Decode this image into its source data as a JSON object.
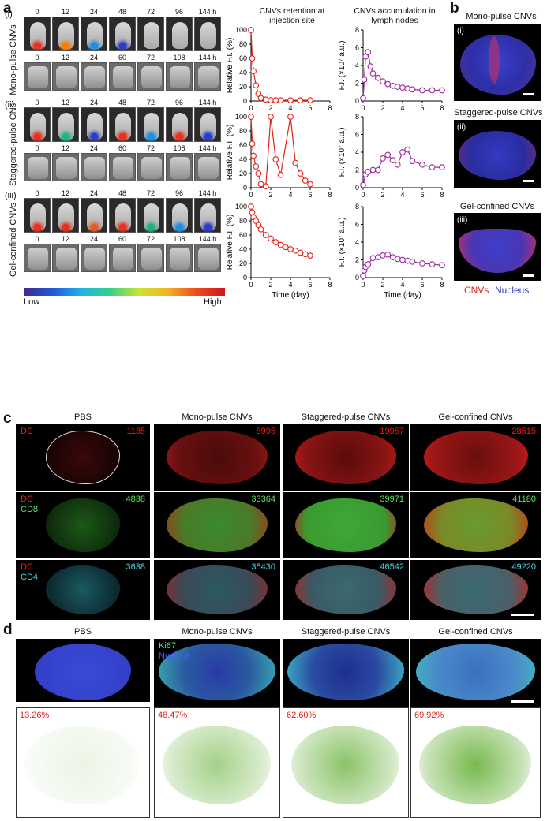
{
  "panel_letters": {
    "a": "a",
    "b": "b",
    "c": "c",
    "d": "d"
  },
  "panel_a": {
    "rows": [
      {
        "roman": "(i)",
        "label": "Mono-pulse CNVs"
      },
      {
        "roman": "(ii)",
        "label": "Staggered-pulse CNs"
      },
      {
        "roman": "(iii)",
        "label": "Gel-confined CNVs"
      }
    ],
    "times_top": [
      "0",
      "12",
      "24",
      "48",
      "72",
      "96",
      "144 h"
    ],
    "times_bottom": [
      "0",
      "12",
      "24",
      "60",
      "72",
      "108",
      "144 h"
    ],
    "colorbar": {
      "low": "Low",
      "high": "High"
    },
    "retention_title": "CNVs retention at injection site",
    "accum_title": "CNVs accumulation in lymph nodes",
    "retention_ylabel": "Relative F.I. (%)",
    "accum_ylabel": "F.I. (×10⁷ a.u.)",
    "xlabel": "Time (day)"
  },
  "chart_data": [
    {
      "type": "line",
      "title": "CNVs retention at injection site",
      "ylabel": "Relative F.I. (%)",
      "xlabel": "",
      "xlim": [
        0,
        8
      ],
      "ylim": [
        0,
        100
      ],
      "x": [
        0,
        0.125,
        0.25,
        0.5,
        0.75,
        1,
        1.5,
        2,
        2.5,
        3,
        4,
        5,
        6
      ],
      "series": [
        {
          "values": [
            100,
            60,
            42,
            22,
            10,
            4,
            2,
            1,
            1,
            1,
            1,
            1,
            1
          ]
        }
      ],
      "color": "#e2231a"
    },
    {
      "type": "line",
      "title": "CNVs accumulation in lymph nodes",
      "ylabel": "F.I. (×10⁷ a.u.)",
      "xlabel": "",
      "xlim": [
        0,
        8
      ],
      "ylim": [
        0,
        8
      ],
      "x": [
        0,
        0.125,
        0.25,
        0.5,
        0.75,
        1,
        1.5,
        2,
        2.5,
        3,
        3.5,
        4,
        4.5,
        5,
        6,
        7,
        8
      ],
      "series": [
        {
          "values": [
            0.3,
            2.4,
            5.0,
            5.5,
            3.9,
            3.1,
            2.6,
            2.2,
            1.9,
            1.7,
            1.6,
            1.5,
            1.4,
            1.3,
            1.2,
            1.2,
            1.2
          ]
        }
      ],
      "color": "#9e2a9e"
    },
    {
      "type": "line",
      "title": "",
      "ylabel": "Relative F.I. (%)",
      "xlabel": "",
      "xlim": [
        0,
        8
      ],
      "ylim": [
        0,
        100
      ],
      "x": [
        0,
        0.125,
        0.25,
        0.5,
        0.75,
        1,
        1.5,
        2,
        2.5,
        3,
        4,
        4.5,
        5,
        5.5,
        6
      ],
      "series": [
        {
          "values": [
            100,
            62,
            45,
            30,
            20,
            5,
            2,
            100,
            40,
            18,
            100,
            35,
            20,
            10,
            5
          ]
        }
      ],
      "color": "#e2231a"
    },
    {
      "type": "line",
      "title": "",
      "ylabel": "F.I. (×10⁷ a.u.)",
      "xlabel": "",
      "xlim": [
        0,
        8
      ],
      "ylim": [
        0,
        8
      ],
      "x": [
        0,
        0.25,
        0.5,
        1,
        1.5,
        2,
        2.5,
        3,
        3.5,
        4,
        4.5,
        5,
        6,
        7,
        8
      ],
      "series": [
        {
          "values": [
            0.3,
            1.5,
            1.8,
            2.0,
            2.0,
            3.3,
            3.7,
            3.1,
            2.6,
            4.0,
            4.3,
            3.0,
            2.6,
            2.3,
            2.3
          ]
        }
      ],
      "color": "#9e2a9e"
    },
    {
      "type": "line",
      "title": "",
      "ylabel": "Relative F.I. (%)",
      "xlabel": "Time (day)",
      "xlim": [
        0,
        8
      ],
      "ylim": [
        0,
        100
      ],
      "x": [
        0,
        0.125,
        0.25,
        0.5,
        0.75,
        1,
        1.5,
        2,
        2.5,
        3,
        3.5,
        4,
        4.5,
        5,
        5.5,
        6
      ],
      "series": [
        {
          "values": [
            100,
            92,
            85,
            80,
            74,
            68,
            60,
            55,
            50,
            46,
            43,
            40,
            38,
            35,
            33,
            31
          ]
        }
      ],
      "color": "#e2231a"
    },
    {
      "type": "line",
      "title": "",
      "ylabel": "F.I. (×10⁷ a.u.)",
      "xlabel": "Time (day)",
      "xlim": [
        0,
        8
      ],
      "ylim": [
        0,
        8
      ],
      "x": [
        0,
        0.125,
        0.25,
        0.5,
        1,
        1.5,
        2,
        2.5,
        3,
        3.5,
        4,
        4.5,
        5,
        6,
        7,
        8
      ],
      "series": [
        {
          "values": [
            0.2,
            0.8,
            1.2,
            1.5,
            2.2,
            2.3,
            2.5,
            2.6,
            2.3,
            2.1,
            2.0,
            1.9,
            1.8,
            1.6,
            1.5,
            1.4
          ]
        }
      ],
      "color": "#9e2a9e"
    }
  ],
  "panel_b": {
    "items": [
      {
        "title": "Mono-pulse CNVs",
        "roman": "(i)"
      },
      {
        "title": "Staggered-pulse CNVs",
        "roman": "(ii)"
      },
      {
        "title": "Gel-confined CNVs",
        "roman": "(iii)"
      }
    ],
    "legend_red": "CNVs",
    "legend_blue": "Nucleus"
  },
  "panel_c": {
    "headers": [
      "PBS",
      "Mono-pulse CNVs",
      "Staggered-pulse CNVs",
      "Gel-confined CNVs"
    ],
    "rows": [
      {
        "ch1": "DC",
        "ch2": "",
        "numbers": [
          "1135",
          "8995",
          "19957",
          "28515"
        ],
        "numcolor": "#e2231a"
      },
      {
        "ch1": "DC",
        "ch2": "CD8",
        "numbers": [
          "4838",
          "33364",
          "39971",
          "41180"
        ],
        "numcolor": "#5ee05e"
      },
      {
        "ch1": "DC",
        "ch2": "CD4",
        "numbers": [
          "3638",
          "35430",
          "46542",
          "49220"
        ],
        "numcolor": "#4fd3e0"
      }
    ]
  },
  "panel_d": {
    "headers": [
      "PBS",
      "Mono-pulse CNVs",
      "Staggered-pulse CNVs",
      "Gel-confined CNVs"
    ],
    "ch1": "Ki67",
    "ch2": "Nucleus",
    "percents": [
      "13.26%",
      "48.47%",
      "62.60%",
      "69.92%"
    ]
  }
}
